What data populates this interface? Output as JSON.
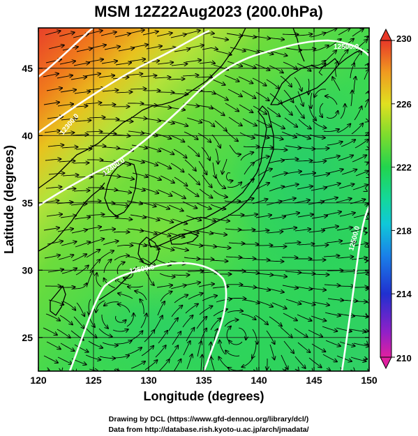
{
  "title": "MSM 12Z22Aug2023 (200.0hPa)",
  "x_axis": {
    "label": "Longitude (degrees)",
    "ticks": [
      "120",
      "125",
      "130",
      "135",
      "140",
      "145",
      "150"
    ]
  },
  "y_axis": {
    "label": "Latitude  (degrees)",
    "ticks": [
      "25",
      "30",
      "35",
      "40",
      "45"
    ]
  },
  "colorbar": {
    "ticks": [
      "230",
      "226",
      "222",
      "218",
      "214",
      "210"
    ],
    "min": 210,
    "max": 230
  },
  "contour_labels": [
    "12500.0",
    "12400.0",
    "12500.0",
    "12500.0",
    "12300.0"
  ],
  "credits": {
    "line1": "Drawing by DCL (https://www.gfd-dennou.org/library/dcl/)",
    "line2": "Data from http://database.rish.kyoto-u.ac.jp/arch/jmadata/"
  },
  "map": {
    "lon_range": [
      120,
      150
    ],
    "lat_range": [
      22.5,
      48
    ],
    "grid_lon": [
      125,
      130,
      135,
      140,
      145
    ],
    "grid_lat": [
      25,
      30,
      35,
      40,
      45
    ],
    "contour_color": "#ffffff",
    "vector_color": "#000000"
  }
}
